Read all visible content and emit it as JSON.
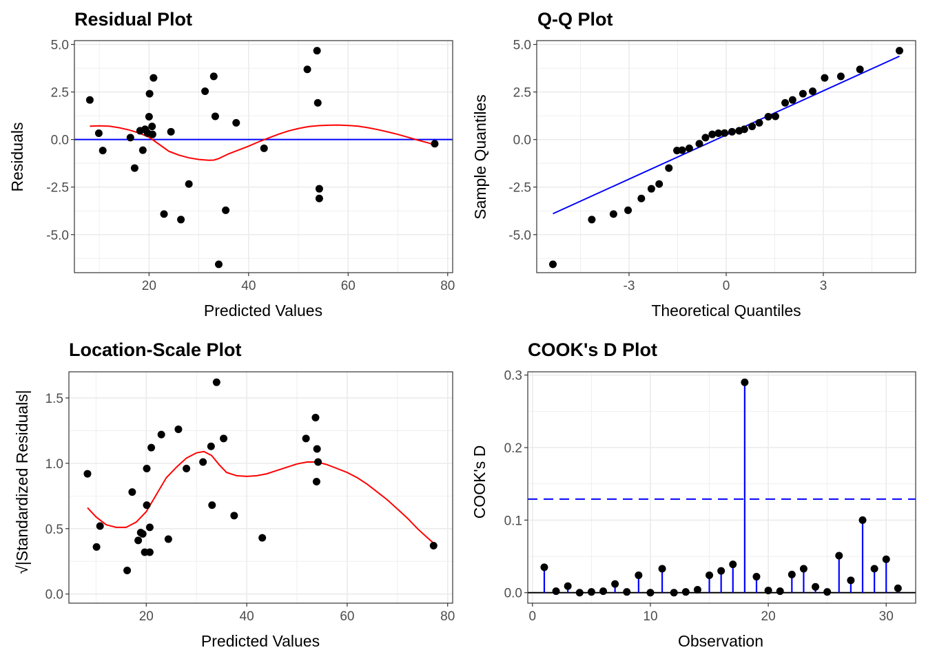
{
  "chart_data": [
    {
      "id": "residual",
      "type": "scatter",
      "title": "Residual Plot",
      "xlabel": "Predicted Values",
      "ylabel": "Residuals",
      "xlim": [
        5,
        81
      ],
      "ylim": [
        -7.0,
        5.2
      ],
      "xticks": [
        20,
        40,
        60,
        80
      ],
      "xtick_labels": [
        "20",
        "40",
        "60",
        "80"
      ],
      "yticks": [
        5.0,
        2.5,
        0.0,
        -2.5,
        -5.0
      ],
      "ytick_labels": [
        "5.0",
        "2.5",
        "0.0",
        "-2.5",
        "-5.0"
      ],
      "grid": true,
      "points": [
        [
          8.1,
          2.08
        ],
        [
          9.9,
          0.33
        ],
        [
          10.7,
          -0.58
        ],
        [
          16.25,
          0.1
        ],
        [
          17.1,
          -1.5
        ],
        [
          18.2,
          0.46
        ],
        [
          18.75,
          -0.56
        ],
        [
          19.2,
          0.54
        ],
        [
          19.7,
          0.34
        ],
        [
          20.0,
          1.2
        ],
        [
          20.1,
          2.41
        ],
        [
          20.6,
          0.69
        ],
        [
          20.7,
          0.27
        ],
        [
          20.9,
          3.24
        ],
        [
          23.0,
          -3.92
        ],
        [
          24.4,
          0.41
        ],
        [
          26.4,
          -4.21
        ],
        [
          28.0,
          -2.34
        ],
        [
          31.25,
          2.54
        ],
        [
          33.0,
          3.32
        ],
        [
          33.3,
          1.22
        ],
        [
          34.0,
          -6.56
        ],
        [
          35.4,
          -3.72
        ],
        [
          37.5,
          0.88
        ],
        [
          43.1,
          -0.46
        ],
        [
          51.8,
          3.69
        ],
        [
          53.75,
          4.67
        ],
        [
          53.9,
          1.93
        ],
        [
          54.2,
          -2.59
        ],
        [
          54.2,
          -3.1
        ],
        [
          77.4,
          -0.22
        ]
      ],
      "reference_line": {
        "y": 0,
        "color": "#0000ff"
      },
      "smooth": {
        "color": "#ff0000",
        "points": [
          [
            8.1,
            0.7
          ],
          [
            10,
            0.72
          ],
          [
            12,
            0.7
          ],
          [
            14,
            0.62
          ],
          [
            16,
            0.5
          ],
          [
            18,
            0.34
          ],
          [
            20,
            0.12
          ],
          [
            22,
            -0.25
          ],
          [
            24,
            -0.62
          ],
          [
            26,
            -0.82
          ],
          [
            28,
            -0.96
          ],
          [
            30,
            -1.05
          ],
          [
            32,
            -1.09
          ],
          [
            33,
            -1.08
          ],
          [
            34,
            -1.0
          ],
          [
            36,
            -0.75
          ],
          [
            38,
            -0.55
          ],
          [
            40,
            -0.35
          ],
          [
            42,
            -0.12
          ],
          [
            44,
            0.08
          ],
          [
            46,
            0.28
          ],
          [
            48,
            0.45
          ],
          [
            50,
            0.58
          ],
          [
            52,
            0.68
          ],
          [
            54,
            0.73
          ],
          [
            56,
            0.75
          ],
          [
            58,
            0.76
          ],
          [
            60,
            0.74
          ],
          [
            62,
            0.7
          ],
          [
            64,
            0.62
          ],
          [
            66,
            0.52
          ],
          [
            68,
            0.4
          ],
          [
            70,
            0.27
          ],
          [
            72,
            0.12
          ],
          [
            74,
            -0.03
          ],
          [
            76,
            -0.17
          ],
          [
            77.4,
            -0.28
          ]
        ]
      }
    },
    {
      "id": "qq",
      "type": "scatter",
      "title": "Q-Q Plot",
      "xlabel": "Theoretical Quantiles",
      "ylabel": "Sample Quantiles",
      "xlim": [
        -5.85,
        5.85
      ],
      "ylim": [
        -7.0,
        5.2
      ],
      "xticks": [
        -3,
        0,
        3
      ],
      "xtick_labels": [
        "-3",
        "0",
        "3"
      ],
      "yticks": [
        5.0,
        2.5,
        0.0,
        -2.5,
        -5.0
      ],
      "ytick_labels": [
        "5.0",
        "2.5",
        "0.0",
        "-2.5",
        "-5.0"
      ],
      "grid": true,
      "points": [
        [
          -5.35,
          -6.56
        ],
        [
          -4.15,
          -4.21
        ],
        [
          -3.48,
          -3.92
        ],
        [
          -3.03,
          -3.72
        ],
        [
          -2.62,
          -3.1
        ],
        [
          -2.31,
          -2.59
        ],
        [
          -2.07,
          -2.34
        ],
        [
          -1.77,
          -1.5
        ],
        [
          -1.52,
          -0.58
        ],
        [
          -1.36,
          -0.56
        ],
        [
          -1.14,
          -0.46
        ],
        [
          -0.83,
          -0.22
        ],
        [
          -0.64,
          0.1
        ],
        [
          -0.43,
          0.27
        ],
        [
          -0.24,
          0.33
        ],
        [
          -0.05,
          0.34
        ],
        [
          0.18,
          0.41
        ],
        [
          0.4,
          0.46
        ],
        [
          0.56,
          0.54
        ],
        [
          0.8,
          0.69
        ],
        [
          1.02,
          0.88
        ],
        [
          1.3,
          1.2
        ],
        [
          1.52,
          1.22
        ],
        [
          1.82,
          1.93
        ],
        [
          2.05,
          2.08
        ],
        [
          2.37,
          2.41
        ],
        [
          2.67,
          2.54
        ],
        [
          3.04,
          3.24
        ],
        [
          3.54,
          3.32
        ],
        [
          4.13,
          3.69
        ],
        [
          5.35,
          4.67
        ]
      ],
      "reference_line": {
        "from": [
          -5.35,
          -3.9
        ],
        "to": [
          5.35,
          4.38
        ],
        "color": "#0000ff"
      }
    },
    {
      "id": "location_scale",
      "type": "scatter",
      "title": "Location-Scale Plot",
      "xlabel": "Predicted Values",
      "ylabel": "√|Standardized Residuals|",
      "xlim": [
        4.6,
        81
      ],
      "ylim": [
        -0.07,
        1.7
      ],
      "xticks": [
        20,
        40,
        60,
        80
      ],
      "xtick_labels": [
        "20",
        "40",
        "60",
        "80"
      ],
      "yticks": [
        1.5,
        1.0,
        0.5,
        0.0
      ],
      "ytick_labels": [
        "1.5",
        "1.0",
        "0.5",
        "0.0"
      ],
      "grid": true,
      "points": [
        [
          8.3,
          0.92
        ],
        [
          10.1,
          0.36
        ],
        [
          10.8,
          0.52
        ],
        [
          16.2,
          0.18
        ],
        [
          17.2,
          0.78
        ],
        [
          18.4,
          0.41
        ],
        [
          18.9,
          0.47
        ],
        [
          19.3,
          0.46
        ],
        [
          19.7,
          0.32
        ],
        [
          20.7,
          0.32
        ],
        [
          20.1,
          0.68
        ],
        [
          20.1,
          0.96
        ],
        [
          21.0,
          1.12
        ],
        [
          20.7,
          0.51
        ],
        [
          24.4,
          0.42
        ],
        [
          23.0,
          1.22
        ],
        [
          26.4,
          1.26
        ],
        [
          28.0,
          0.96
        ],
        [
          31.3,
          1.01
        ],
        [
          32.9,
          1.13
        ],
        [
          33.1,
          0.68
        ],
        [
          34.0,
          1.62
        ],
        [
          35.4,
          1.19
        ],
        [
          37.5,
          0.6
        ],
        [
          43.1,
          0.43
        ],
        [
          51.8,
          1.19
        ],
        [
          53.7,
          1.35
        ],
        [
          54.0,
          1.11
        ],
        [
          54.2,
          1.01
        ],
        [
          53.9,
          0.86
        ],
        [
          77.2,
          0.37
        ]
      ],
      "smooth": {
        "color": "#ff0000",
        "points": [
          [
            8.3,
            0.66
          ],
          [
            10,
            0.59
          ],
          [
            12,
            0.53
          ],
          [
            14,
            0.51
          ],
          [
            16,
            0.51
          ],
          [
            18,
            0.55
          ],
          [
            20,
            0.63
          ],
          [
            22,
            0.76
          ],
          [
            24,
            0.89
          ],
          [
            26,
            0.97
          ],
          [
            28,
            1.04
          ],
          [
            30,
            1.08
          ],
          [
            31.5,
            1.09
          ],
          [
            33,
            1.06
          ],
          [
            34.5,
            0.99
          ],
          [
            36,
            0.93
          ],
          [
            38,
            0.905
          ],
          [
            40,
            0.9
          ],
          [
            42,
            0.905
          ],
          [
            44,
            0.92
          ],
          [
            46,
            0.945
          ],
          [
            48,
            0.97
          ],
          [
            50,
            0.995
          ],
          [
            52,
            1.01
          ],
          [
            54,
            1.01
          ],
          [
            56,
            0.99
          ],
          [
            58,
            0.96
          ],
          [
            60,
            0.93
          ],
          [
            62,
            0.89
          ],
          [
            64,
            0.84
          ],
          [
            66,
            0.78
          ],
          [
            68,
            0.72
          ],
          [
            70,
            0.65
          ],
          [
            72,
            0.58
          ],
          [
            74,
            0.5
          ],
          [
            76,
            0.43
          ],
          [
            77.2,
            0.39
          ]
        ]
      }
    },
    {
      "id": "cooks_d",
      "type": "bar",
      "subtype": "lollipop",
      "title": "COOK's D Plot",
      "xlabel": "Observation",
      "ylabel": "COOK's D",
      "xlim": [
        -0.4,
        32.5
      ],
      "ylim": [
        -0.0145,
        0.3045
      ],
      "xticks": [
        0,
        10,
        20,
        30
      ],
      "xtick_labels": [
        "0",
        "10",
        "20",
        "30"
      ],
      "yticks": [
        0.3,
        0.2,
        0.1,
        0.0
      ],
      "ytick_labels": [
        "0.3",
        "0.2",
        "0.1",
        "0.0"
      ],
      "grid": true,
      "categories": [
        1,
        2,
        3,
        4,
        5,
        6,
        7,
        8,
        9,
        10,
        11,
        12,
        13,
        14,
        15,
        16,
        17,
        18,
        19,
        20,
        21,
        22,
        23,
        24,
        25,
        26,
        27,
        28,
        29,
        30,
        31
      ],
      "values": [
        0.035,
        0.002,
        0.009,
        0.0,
        0.001,
        0.002,
        0.012,
        0.001,
        0.024,
        0.0,
        0.033,
        0.0,
        0.001,
        0.004,
        0.024,
        0.03,
        0.039,
        0.29,
        0.022,
        0.003,
        0.002,
        0.025,
        0.033,
        0.008,
        0.001,
        0.051,
        0.017,
        0.1,
        0.033,
        0.046,
        0.006
      ],
      "threshold": {
        "y": 0.129,
        "style": "dashed",
        "color": "#0000ff"
      },
      "stem_color": "#0000ff"
    }
  ]
}
